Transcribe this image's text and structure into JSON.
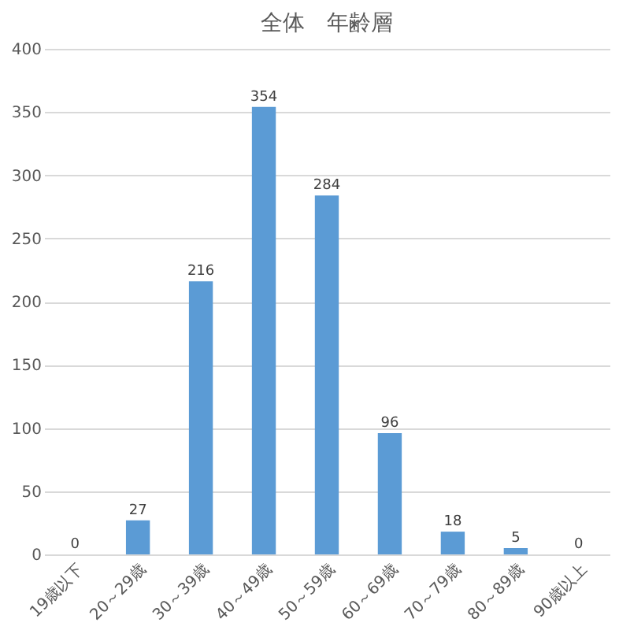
{
  "chart_data": {
    "type": "bar",
    "title": "全体　年齢層",
    "categories": [
      "19歳以下",
      "20～29歳",
      "30～39歳",
      "40～49歳",
      "50～59歳",
      "60～69歳",
      "70～79歳",
      "80～89歳",
      "90歳以上"
    ],
    "values": [
      0,
      27,
      216,
      354,
      284,
      96,
      18,
      5,
      0
    ],
    "color": "#5b9bd5",
    "ylim": [
      0,
      400
    ],
    "yticks": [
      0,
      50,
      100,
      150,
      200,
      250,
      300,
      350,
      400
    ],
    "grid": "y",
    "data_labels": true
  }
}
